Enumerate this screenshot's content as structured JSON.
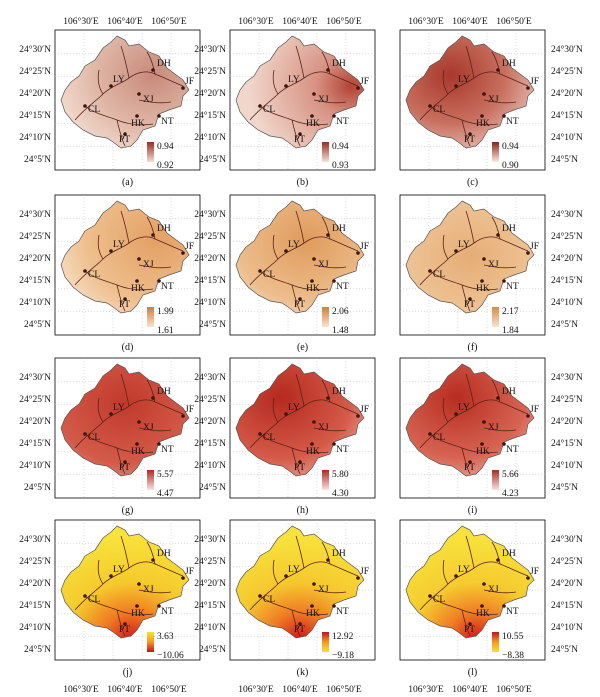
{
  "axes": {
    "x_ticks": [
      "106°30′E",
      "106°40′E",
      "106°50′E"
    ],
    "y_ticks": [
      "24°30′N",
      "24°25′N",
      "24°20′N",
      "24°15′N",
      "24°10′N",
      "24°5′N"
    ]
  },
  "station_labels": [
    "LY",
    "DH",
    "XJ",
    "JF",
    "CL",
    "HK",
    "NT",
    "PT"
  ],
  "panels": [
    {
      "caption": "(a)",
      "legend_max": "0.94",
      "legend_min": "0.92",
      "colors": [
        "#f3ddd0",
        "#9a2b22"
      ]
    },
    {
      "caption": "(b)",
      "legend_max": "0.94",
      "legend_min": "0.93",
      "colors": [
        "#f5e2d6",
        "#9a2b22"
      ]
    },
    {
      "caption": "(c)",
      "legend_max": "0.94",
      "legend_min": "0.90",
      "colors": [
        "#f8ece3",
        "#8d2118"
      ]
    },
    {
      "caption": "(d)",
      "legend_max": "1.99",
      "legend_min": "1.61",
      "colors": [
        "#f8e3cc",
        "#d57a3a"
      ]
    },
    {
      "caption": "(e)",
      "legend_max": "2.06",
      "legend_min": "1.48",
      "colors": [
        "#f8e5cf",
        "#d77a36"
      ]
    },
    {
      "caption": "(f)",
      "legend_max": "2.17",
      "legend_min": "1.84",
      "colors": [
        "#f8e4cc",
        "#d88a48"
      ]
    },
    {
      "caption": "(g)",
      "legend_max": "5.57",
      "legend_min": "4.47",
      "colors": [
        "#f5e4e2",
        "#b2281d"
      ]
    },
    {
      "caption": "(h)",
      "legend_max": "5.80",
      "legend_min": "4.30",
      "colors": [
        "#f5e4e2",
        "#b2281d"
      ]
    },
    {
      "caption": "(i)",
      "legend_max": "5.66",
      "legend_min": "4.23",
      "colors": [
        "#f5e4e2",
        "#b2281d"
      ]
    },
    {
      "caption": "(j)",
      "legend_max": "3.63",
      "legend_min": "−10.06",
      "colors": [
        "#f7e233",
        "#c7101a"
      ]
    },
    {
      "caption": "(k)",
      "legend_max": "12.92",
      "legend_min": "−9.18",
      "colors": [
        "#f7e233",
        "#c7101a"
      ]
    },
    {
      "caption": "(l)",
      "legend_max": "10.55",
      "legend_min": "−8.38",
      "colors": [
        "#f7e233",
        "#c7101a"
      ]
    }
  ]
}
